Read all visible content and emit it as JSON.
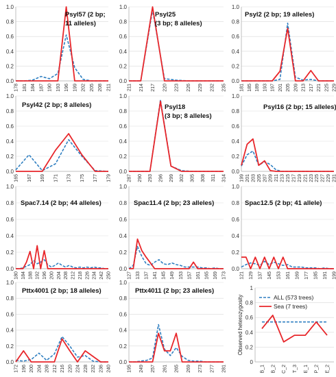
{
  "colors": {
    "all": "#2f7fc1",
    "sea": "#e8262a",
    "axis": "#bfbfbf",
    "grid": "#d9d9d9"
  },
  "chart_data": [
    {
      "type": "line",
      "title": "Psyl57 (2 bp;",
      "title2": "11 alleles)",
      "ylim": [
        0,
        1
      ],
      "yticks": [
        "0.0",
        "0.2",
        "0.4",
        "0.6",
        "0.8",
        "1.0"
      ],
      "categories": [
        "178",
        "181",
        "184",
        "187",
        "190",
        "193",
        "196",
        "199",
        "202",
        "205",
        "208",
        "211"
      ],
      "series": [
        {
          "key": "all",
          "values": [
            0,
            0,
            0.01,
            0.06,
            0.03,
            0.1,
            0.62,
            0.18,
            0.02,
            0,
            0,
            0
          ]
        },
        {
          "key": "sea",
          "values": [
            0,
            0,
            0,
            0,
            0,
            0,
            1.0,
            0,
            0,
            0,
            0,
            0
          ]
        }
      ]
    },
    {
      "type": "line",
      "title": "Psyl25",
      "title2": "(3 bp; 8 alleles)",
      "ylim": [
        0,
        1
      ],
      "yticks": [
        "0.0",
        "0.2",
        "0.4",
        "0.6",
        "0.8",
        "1.0"
      ],
      "categories": [
        "211",
        "214",
        "217",
        "220",
        "223",
        "226",
        "229",
        "232",
        "235"
      ],
      "series": [
        {
          "key": "all",
          "values": [
            0,
            0,
            0.96,
            0.03,
            0.01,
            0,
            0,
            0,
            0
          ]
        },
        {
          "key": "sea",
          "values": [
            0,
            0,
            1.0,
            0,
            0,
            0,
            0,
            0,
            0
          ]
        }
      ]
    },
    {
      "type": "line",
      "title": "Psyl2 (2 bp; 19 alleles)",
      "ylim": [
        0,
        1
      ],
      "yticks": [
        "0.0",
        "0.2",
        "0.4",
        "0.6",
        "0.8",
        "1.0"
      ],
      "categories": [
        "181",
        "185",
        "189",
        "193",
        "197",
        "201",
        "205",
        "209",
        "213",
        "217",
        "221",
        "225",
        "229"
      ],
      "series": [
        {
          "key": "all",
          "values": [
            0,
            0,
            0,
            0,
            0,
            0.02,
            0.78,
            0.05,
            0.01,
            0.02,
            0,
            0,
            0
          ]
        },
        {
          "key": "sea",
          "values": [
            0,
            0,
            0,
            0,
            0,
            0.13,
            0.71,
            0,
            0,
            0.14,
            0,
            0,
            0
          ]
        }
      ]
    },
    {
      "type": "line",
      "title": "Psyl42 (2 bp; 8 alleles)",
      "ylim": [
        0,
        1
      ],
      "yticks": [
        "0.0",
        "0.2",
        "0.4",
        "0.6",
        "0.8",
        "1.0"
      ],
      "categories": [
        "165",
        "167",
        "169",
        "171",
        "173",
        "175",
        "177",
        "179"
      ],
      "series": [
        {
          "key": "all",
          "values": [
            0.02,
            0.22,
            0.01,
            0.1,
            0.42,
            0.2,
            0.01,
            0
          ]
        },
        {
          "key": "sea",
          "values": [
            0,
            0,
            0,
            0.28,
            0.5,
            0.22,
            0,
            0
          ]
        }
      ]
    },
    {
      "type": "line",
      "title": "Psyl18",
      "title2": "(3 bp; 8 alleles)",
      "ylim": [
        0,
        1
      ],
      "yticks": [
        "0.0",
        "0.2",
        "0.4",
        "0.6",
        "0.8",
        "1.0"
      ],
      "categories": [
        "287",
        "290",
        "293",
        "296",
        "299",
        "302",
        "305",
        "308",
        "311",
        "314"
      ],
      "series": [
        {
          "key": "all",
          "values": [
            0,
            0,
            0,
            0.95,
            0.07,
            0.01,
            0,
            0,
            0,
            0
          ]
        },
        {
          "key": "sea",
          "values": [
            0,
            0,
            0,
            0.93,
            0.07,
            0,
            0,
            0,
            0,
            0
          ]
        }
      ]
    },
    {
      "type": "line",
      "title": "Psyl16 (2 bp; 15 alleles)",
      "ylim": [
        0,
        1
      ],
      "yticks": [
        "0.0",
        "0.2",
        "0.4",
        "0.6",
        "0.8",
        "1.0"
      ],
      "categories": [
        "199",
        "201",
        "203",
        "205",
        "207",
        "209",
        "211",
        "213",
        "215",
        "217",
        "219",
        "221",
        "223",
        "225",
        "227",
        "229",
        "231"
      ],
      "series": [
        {
          "key": "all",
          "values": [
            0.07,
            0.22,
            0.27,
            0.08,
            0.13,
            0.09,
            0.02,
            0,
            0,
            0,
            0,
            0,
            0,
            0,
            0,
            0,
            0
          ]
        },
        {
          "key": "sea",
          "values": [
            0.08,
            0.36,
            0.43,
            0.08,
            0.14,
            0.01,
            0,
            0,
            0,
            0,
            0,
            0,
            0,
            0,
            0,
            0,
            0
          ]
        }
      ]
    },
    {
      "type": "line",
      "title": "Spac7.14 (2 bp; 44 alleles)",
      "ylim": [
        0,
        1
      ],
      "yticks": [
        "0.0",
        "0.2",
        "0.4",
        "0.6",
        "0.8",
        "1.0"
      ],
      "categories": [
        "180",
        "",
        "184",
        "",
        "188",
        "",
        "192",
        "",
        "196",
        "",
        "200",
        "",
        "204",
        "",
        "208",
        "",
        "212",
        "",
        "218",
        "",
        "226",
        "",
        "234",
        "",
        "242",
        "",
        "250"
      ],
      "series": [
        {
          "key": "all",
          "values": [
            0,
            0,
            0.01,
            0.03,
            0.05,
            0.1,
            0.06,
            0.08,
            0.11,
            0.05,
            0.02,
            0.04,
            0.07,
            0.04,
            0.02,
            0.04,
            0.02,
            0.01,
            0.02,
            0.01,
            0.02,
            0.01,
            0.02,
            0.01,
            0.01,
            0,
            0
          ]
        },
        {
          "key": "sea",
          "values": [
            0,
            0,
            0,
            0.08,
            0.21,
            0,
            0.28,
            0,
            0.22,
            0,
            0,
            0,
            0,
            0,
            0,
            0,
            0,
            0,
            0,
            0,
            0,
            0,
            0,
            0,
            0,
            0,
            0
          ]
        }
      ]
    },
    {
      "type": "line",
      "title": "Spac11.4 (2 bp; 23 alleles)",
      "ylim": [
        0,
        1
      ],
      "yticks": [
        "0.0",
        "0.2",
        "0.4",
        "0.6",
        "0.8",
        "1.0"
      ],
      "categories": [
        "127",
        "",
        "133",
        "",
        "137",
        "",
        "141",
        "",
        "145",
        "",
        "149",
        "",
        "153",
        "",
        "157",
        "",
        "161",
        "",
        "165",
        "",
        "169",
        "",
        "173"
      ],
      "series": [
        {
          "key": "all",
          "values": [
            0,
            0.04,
            0.27,
            0.15,
            0.06,
            0.04,
            0.08,
            0.11,
            0.06,
            0.05,
            0.07,
            0.05,
            0.04,
            0.02,
            0.02,
            0.02,
            0.02,
            0.01,
            0.01,
            0,
            0.01,
            0,
            0
          ]
        },
        {
          "key": "sea",
          "values": [
            0,
            0,
            0.36,
            0.22,
            0.14,
            0.07,
            0,
            0,
            0,
            0,
            0,
            0,
            0,
            0,
            0,
            0.08,
            0,
            0,
            0,
            0,
            0,
            0,
            0
          ]
        }
      ]
    },
    {
      "type": "line",
      "title": "Spac12.5 (2 bp; 41 allele)",
      "ylim": [
        0,
        1
      ],
      "yticks": [
        "0.0",
        "0.2",
        "0.4",
        "0.6",
        "0.8",
        "1.0"
      ],
      "categories": [
        "121",
        "",
        "129",
        "",
        "137",
        "",
        "145",
        "",
        "153",
        "",
        "161",
        "",
        "169",
        "",
        "177",
        "",
        "185",
        "",
        "191",
        "",
        "199"
      ],
      "series": [
        {
          "key": "all",
          "values": [
            0.02,
            0.05,
            0.07,
            0.06,
            0.04,
            0.09,
            0.05,
            0.08,
            0.06,
            0.04,
            0.05,
            0.02,
            0.02,
            0.02,
            0.01,
            0.01,
            0.01,
            0,
            0.01,
            0,
            0
          ]
        },
        {
          "key": "sea",
          "values": [
            0.14,
            0.14,
            0,
            0.14,
            0,
            0.14,
            0,
            0.14,
            0,
            0.14,
            0,
            0,
            0,
            0,
            0,
            0,
            0,
            0,
            0,
            0,
            0
          ]
        }
      ]
    },
    {
      "type": "line",
      "title": "Pttx4001 (2 bp; 18 alleles)",
      "ylim": [
        0,
        1
      ],
      "yticks": [
        "0.0",
        "0.2",
        "0.4",
        "0.6",
        "0.8",
        "1.0"
      ],
      "categories": [
        "172",
        "196",
        "200",
        "204",
        "208",
        "212",
        "216",
        "220",
        "224",
        "228",
        "232",
        "236",
        "240"
      ],
      "series": [
        {
          "key": "all",
          "values": [
            0.02,
            0.01,
            0.03,
            0.11,
            0.02,
            0.1,
            0.32,
            0.2,
            0.06,
            0.08,
            0.01,
            0,
            0
          ]
        },
        {
          "key": "sea",
          "values": [
            0,
            0.14,
            0,
            0,
            0,
            0,
            0.29,
            0.14,
            0,
            0.14,
            0.07,
            0,
            0
          ]
        }
      ]
    },
    {
      "type": "line",
      "title": "Pttx4011 (2 bp; 23 alleles)",
      "ylim": [
        0,
        1
      ],
      "yticks": [
        "0.0",
        "0.2",
        "0.4",
        "0.6",
        "0.8",
        "1.0"
      ],
      "categories": [
        "195",
        "",
        "249",
        "",
        "257",
        "",
        "261",
        "",
        "265",
        "",
        "269",
        "",
        "273",
        "",
        "277",
        "",
        "281"
      ],
      "series": [
        {
          "key": "all",
          "values": [
            0,
            0,
            0.01,
            0.02,
            0.05,
            0.47,
            0.16,
            0.08,
            0.18,
            0.07,
            0.02,
            0.01,
            0.01,
            0,
            0,
            0,
            0
          ]
        },
        {
          "key": "sea",
          "values": [
            0,
            0,
            0,
            0,
            0,
            0.36,
            0.14,
            0.14,
            0.36,
            0,
            0,
            0,
            0,
            0,
            0,
            0,
            0
          ]
        }
      ]
    },
    {
      "type": "line",
      "ylabel": "Observed heterozygosity",
      "ylim": [
        0,
        1
      ],
      "yticks": [
        "0",
        "0.2",
        "0.4",
        "0.6",
        "0.8",
        "1"
      ],
      "categories": [
        "B_1",
        "B_2",
        "C_2",
        "T_3",
        "E_1",
        "P_2",
        "E_2"
      ],
      "legend": [
        {
          "key": "all",
          "label": "ALL (573 trees)"
        },
        {
          "key": "sea",
          "label": "Sea (7 trees)"
        }
      ],
      "legend_position": "top-right",
      "series": [
        {
          "key": "all",
          "values": [
            0.54,
            0.54,
            0.54,
            0.54,
            0.54,
            0.54,
            0.54
          ]
        },
        {
          "key": "sea",
          "values": [
            0.45,
            0.63,
            0.27,
            0.36,
            0.36,
            0.54,
            0.36
          ]
        }
      ]
    }
  ]
}
